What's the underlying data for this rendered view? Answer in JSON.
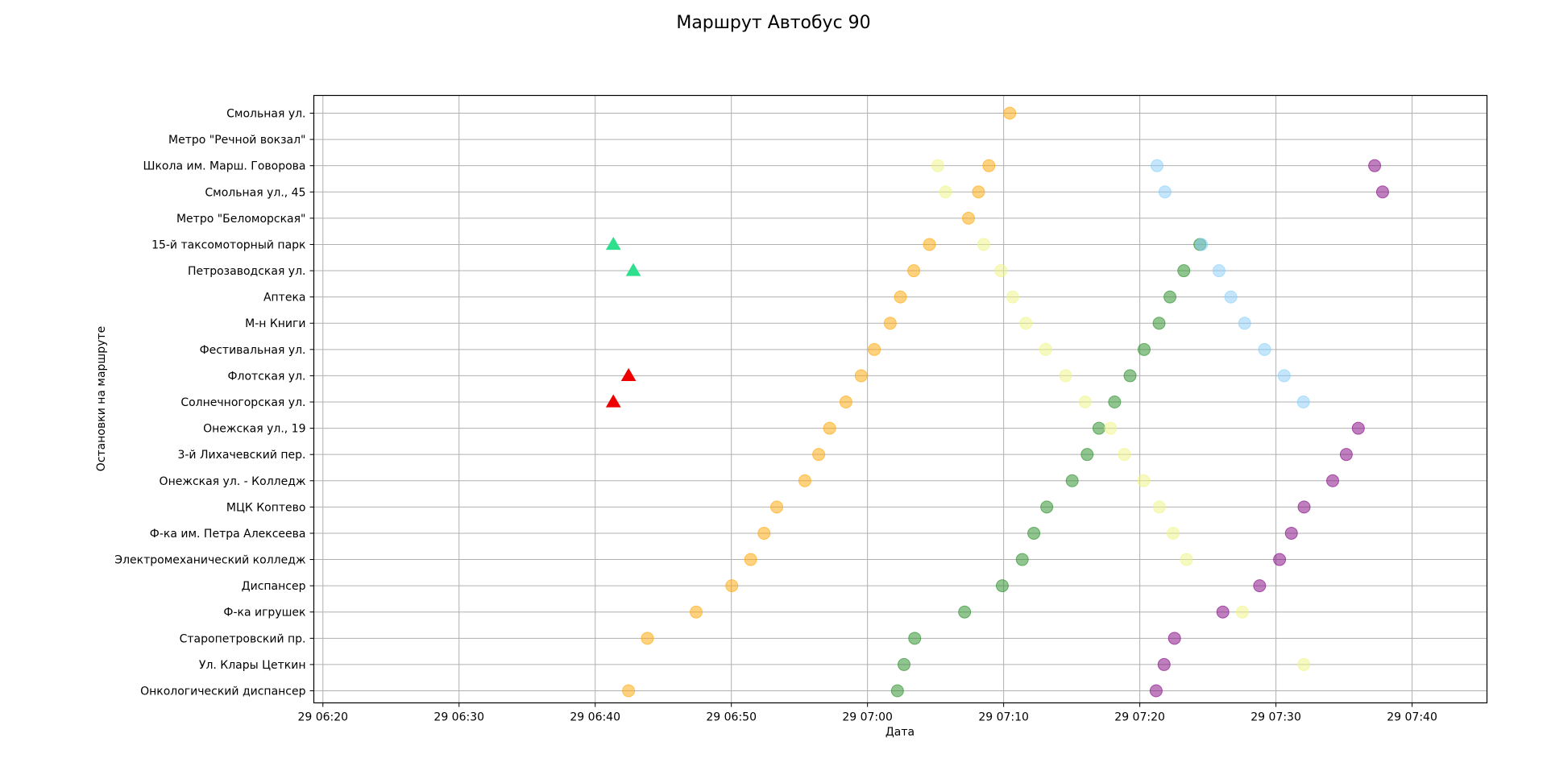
{
  "chart_data": {
    "type": "scatter",
    "title": "Маршрут Автобус 90",
    "xlabel": "Дата",
    "ylabel": "Остановки на маршруте",
    "x_unit": "time",
    "x_ticks": [
      "29 06:20",
      "29 06:30",
      "29 06:40",
      "29 06:50",
      "29 07:00",
      "29 07:10",
      "29 07:20",
      "29 07:30",
      "29 07:40"
    ],
    "xlim": [
      "06:19:20",
      "07:45:30"
    ],
    "grid": true,
    "legend": "none",
    "stops": [
      "Смольная ул.",
      "Метро \"Речной вокзал\"",
      "Школа им. Марш. Говорова",
      "Смольная ул., 45",
      "Метро \"Беломорская\"",
      "15-й таксомоторный парк",
      "Петрозаводская ул.",
      "Аптека",
      "М-н Книги",
      "Фестивальная ул.",
      "Флотская ул.",
      "Солнечногорская ул.",
      "Онежская ул., 19",
      "3-й Лихачевский пер.",
      "Онежская ул. - Колледж",
      "МЦК Коптево",
      "Ф-ка им. Петра Алексеева",
      "Электромеханический колледж",
      "Диспансер",
      "Ф-ка игрушек",
      "Старопетровский пр.",
      "Ул. Клары Цеткин",
      "Онкологический диспансер"
    ],
    "series": [
      {
        "color": "#ffa500",
        "marker": "circle",
        "points": [
          {
            "x": "06:42:27",
            "y": "Онкологический диспансер"
          },
          {
            "x": "06:43:50",
            "y": "Старопетровский пр."
          },
          {
            "x": "06:47:25",
            "y": "Ф-ка игрушек"
          },
          {
            "x": "06:50:02",
            "y": "Диспансер"
          },
          {
            "x": "06:51:25",
            "y": "Электромеханический колледж"
          },
          {
            "x": "06:52:24",
            "y": "Ф-ка им. Петра Алексеева"
          },
          {
            "x": "06:53:20",
            "y": "МЦК Коптево"
          },
          {
            "x": "06:55:24",
            "y": "Онежская ул. - Колледж"
          },
          {
            "x": "06:56:25",
            "y": "3-й Лихачевский пер."
          },
          {
            "x": "06:57:13",
            "y": "Онежская ул., 19"
          },
          {
            "x": "06:58:25",
            "y": "Солнечногорская ул."
          },
          {
            "x": "06:59:32",
            "y": "Флотская ул."
          },
          {
            "x": "07:00:30",
            "y": "Фестивальная ул."
          },
          {
            "x": "07:01:40",
            "y": "М-н Книги"
          },
          {
            "x": "07:02:25",
            "y": "Аптека"
          },
          {
            "x": "07:03:24",
            "y": "Петрозаводская ул."
          },
          {
            "x": "07:04:33",
            "y": "15-й таксомоторный парк"
          },
          {
            "x": "07:07:25",
            "y": "Метро \"Беломорская\""
          },
          {
            "x": "07:08:09",
            "y": "Смольная ул., 45"
          },
          {
            "x": "07:08:55",
            "y": "Школа им. Марш. Говорова"
          },
          {
            "x": "07:10:27",
            "y": "Смольная ул."
          }
        ]
      },
      {
        "color": "#228b22",
        "marker": "circle",
        "points": [
          {
            "x": "07:02:12",
            "y": "Онкологический диспансер"
          },
          {
            "x": "07:02:41",
            "y": "Ул. Клары Цеткин"
          },
          {
            "x": "07:03:28",
            "y": "Старопетровский пр."
          },
          {
            "x": "07:07:08",
            "y": "Ф-ка игрушек"
          },
          {
            "x": "07:09:54",
            "y": "Диспансер"
          },
          {
            "x": "07:11:22",
            "y": "Электромеханический колледж"
          },
          {
            "x": "07:12:13",
            "y": "Ф-ка им. Петра Алексеева"
          },
          {
            "x": "07:13:10",
            "y": "МЦК Коптево"
          },
          {
            "x": "07:15:02",
            "y": "Онежская ул. - Колледж"
          },
          {
            "x": "07:16:08",
            "y": "3-й Лихачевский пер."
          },
          {
            "x": "07:17:00",
            "y": "Онежская ул., 19"
          },
          {
            "x": "07:18:09",
            "y": "Солнечногорская ул."
          },
          {
            "x": "07:19:17",
            "y": "Флотская ул."
          },
          {
            "x": "07:20:19",
            "y": "Фестивальная ул."
          },
          {
            "x": "07:21:25",
            "y": "М-н Книги"
          },
          {
            "x": "07:22:13",
            "y": "Аптека"
          },
          {
            "x": "07:23:14",
            "y": "Петрозаводская ул."
          },
          {
            "x": "07:24:25",
            "y": "15-й таксомоторный парк"
          }
        ]
      },
      {
        "color": "#87cefa",
        "marker": "circle",
        "points": [
          {
            "x": "07:24:32",
            "y": "15-й таксомоторный парк"
          },
          {
            "x": "07:25:49",
            "y": "Петрозаводская ул."
          },
          {
            "x": "07:26:41",
            "y": "Аптека"
          },
          {
            "x": "07:27:42",
            "y": "М-н Книги"
          },
          {
            "x": "07:29:10",
            "y": "Фестивальная ул."
          },
          {
            "x": "07:30:36",
            "y": "Флотская ул."
          },
          {
            "x": "07:32:01",
            "y": "Солнечногорская ул."
          },
          {
            "x": "07:21:16",
            "y": "Школа им. Марш. Говорова"
          },
          {
            "x": "07:21:51",
            "y": "Смольная ул., 45"
          }
        ]
      },
      {
        "color": "#800080",
        "marker": "circle",
        "points": [
          {
            "x": "07:21:12",
            "y": "Онкологический диспансер"
          },
          {
            "x": "07:21:47",
            "y": "Ул. Клары Цеткин"
          },
          {
            "x": "07:22:33",
            "y": "Старопетровский пр."
          },
          {
            "x": "07:26:06",
            "y": "Ф-ка игрушек"
          },
          {
            "x": "07:28:48",
            "y": "Диспансер"
          },
          {
            "x": "07:30:16",
            "y": "Электромеханический колледж"
          },
          {
            "x": "07:31:08",
            "y": "Ф-ка им. Петра Алексеева"
          },
          {
            "x": "07:32:04",
            "y": "МЦК Коптево"
          },
          {
            "x": "07:34:10",
            "y": "Онежская ул. - Колледж"
          },
          {
            "x": "07:35:10",
            "y": "3-й Лихачевский пер."
          },
          {
            "x": "07:36:03",
            "y": "Онежская ул., 19"
          },
          {
            "x": "07:37:15",
            "y": "Школа им. Марш. Говорова"
          },
          {
            "x": "07:37:50",
            "y": "Смольная ул., 45"
          }
        ]
      },
      {
        "color": "#eef582",
        "marker": "circle",
        "points": [
          {
            "x": "07:05:10",
            "y": "Школа им. Марш. Говорова"
          },
          {
            "x": "07:05:44",
            "y": "Смольная ул., 45"
          },
          {
            "x": "07:08:32",
            "y": "15-й таксомоторный парк"
          },
          {
            "x": "07:09:48",
            "y": "Петрозаводская ул."
          },
          {
            "x": "07:10:40",
            "y": "Аптека"
          },
          {
            "x": "07:11:38",
            "y": "М-н Книги"
          },
          {
            "x": "07:13:05",
            "y": "Фестивальная ул."
          },
          {
            "x": "07:14:33",
            "y": "Флотская ул."
          },
          {
            "x": "07:15:59",
            "y": "Солнечногорская ул."
          },
          {
            "x": "07:17:51",
            "y": "Онежская ул., 19"
          },
          {
            "x": "07:18:52",
            "y": "3-й Лихачевский пер."
          },
          {
            "x": "07:20:17",
            "y": "Онежская ул. - Колледж"
          },
          {
            "x": "07:21:26",
            "y": "МЦК Коптево"
          },
          {
            "x": "07:22:27",
            "y": "Ф-ка им. Петра Алексеева"
          },
          {
            "x": "07:23:26",
            "y": "Электромеханический колледж"
          },
          {
            "x": "07:27:32",
            "y": "Ф-ка игрушек"
          },
          {
            "x": "07:32:03",
            "y": "Ул. Клары Цеткин"
          }
        ]
      },
      {
        "color": "#2ee08e",
        "marker": "triangle",
        "points": [
          {
            "x": "06:41:20",
            "y": "15-й таксомоторный парк"
          },
          {
            "x": "06:42:48",
            "y": "Петрозаводская ул."
          }
        ]
      },
      {
        "color": "#ee0000",
        "marker": "triangle",
        "points": [
          {
            "x": "06:42:27",
            "y": "Флотская ул."
          },
          {
            "x": "06:41:20",
            "y": "Солнечногорская ул."
          }
        ]
      }
    ]
  }
}
